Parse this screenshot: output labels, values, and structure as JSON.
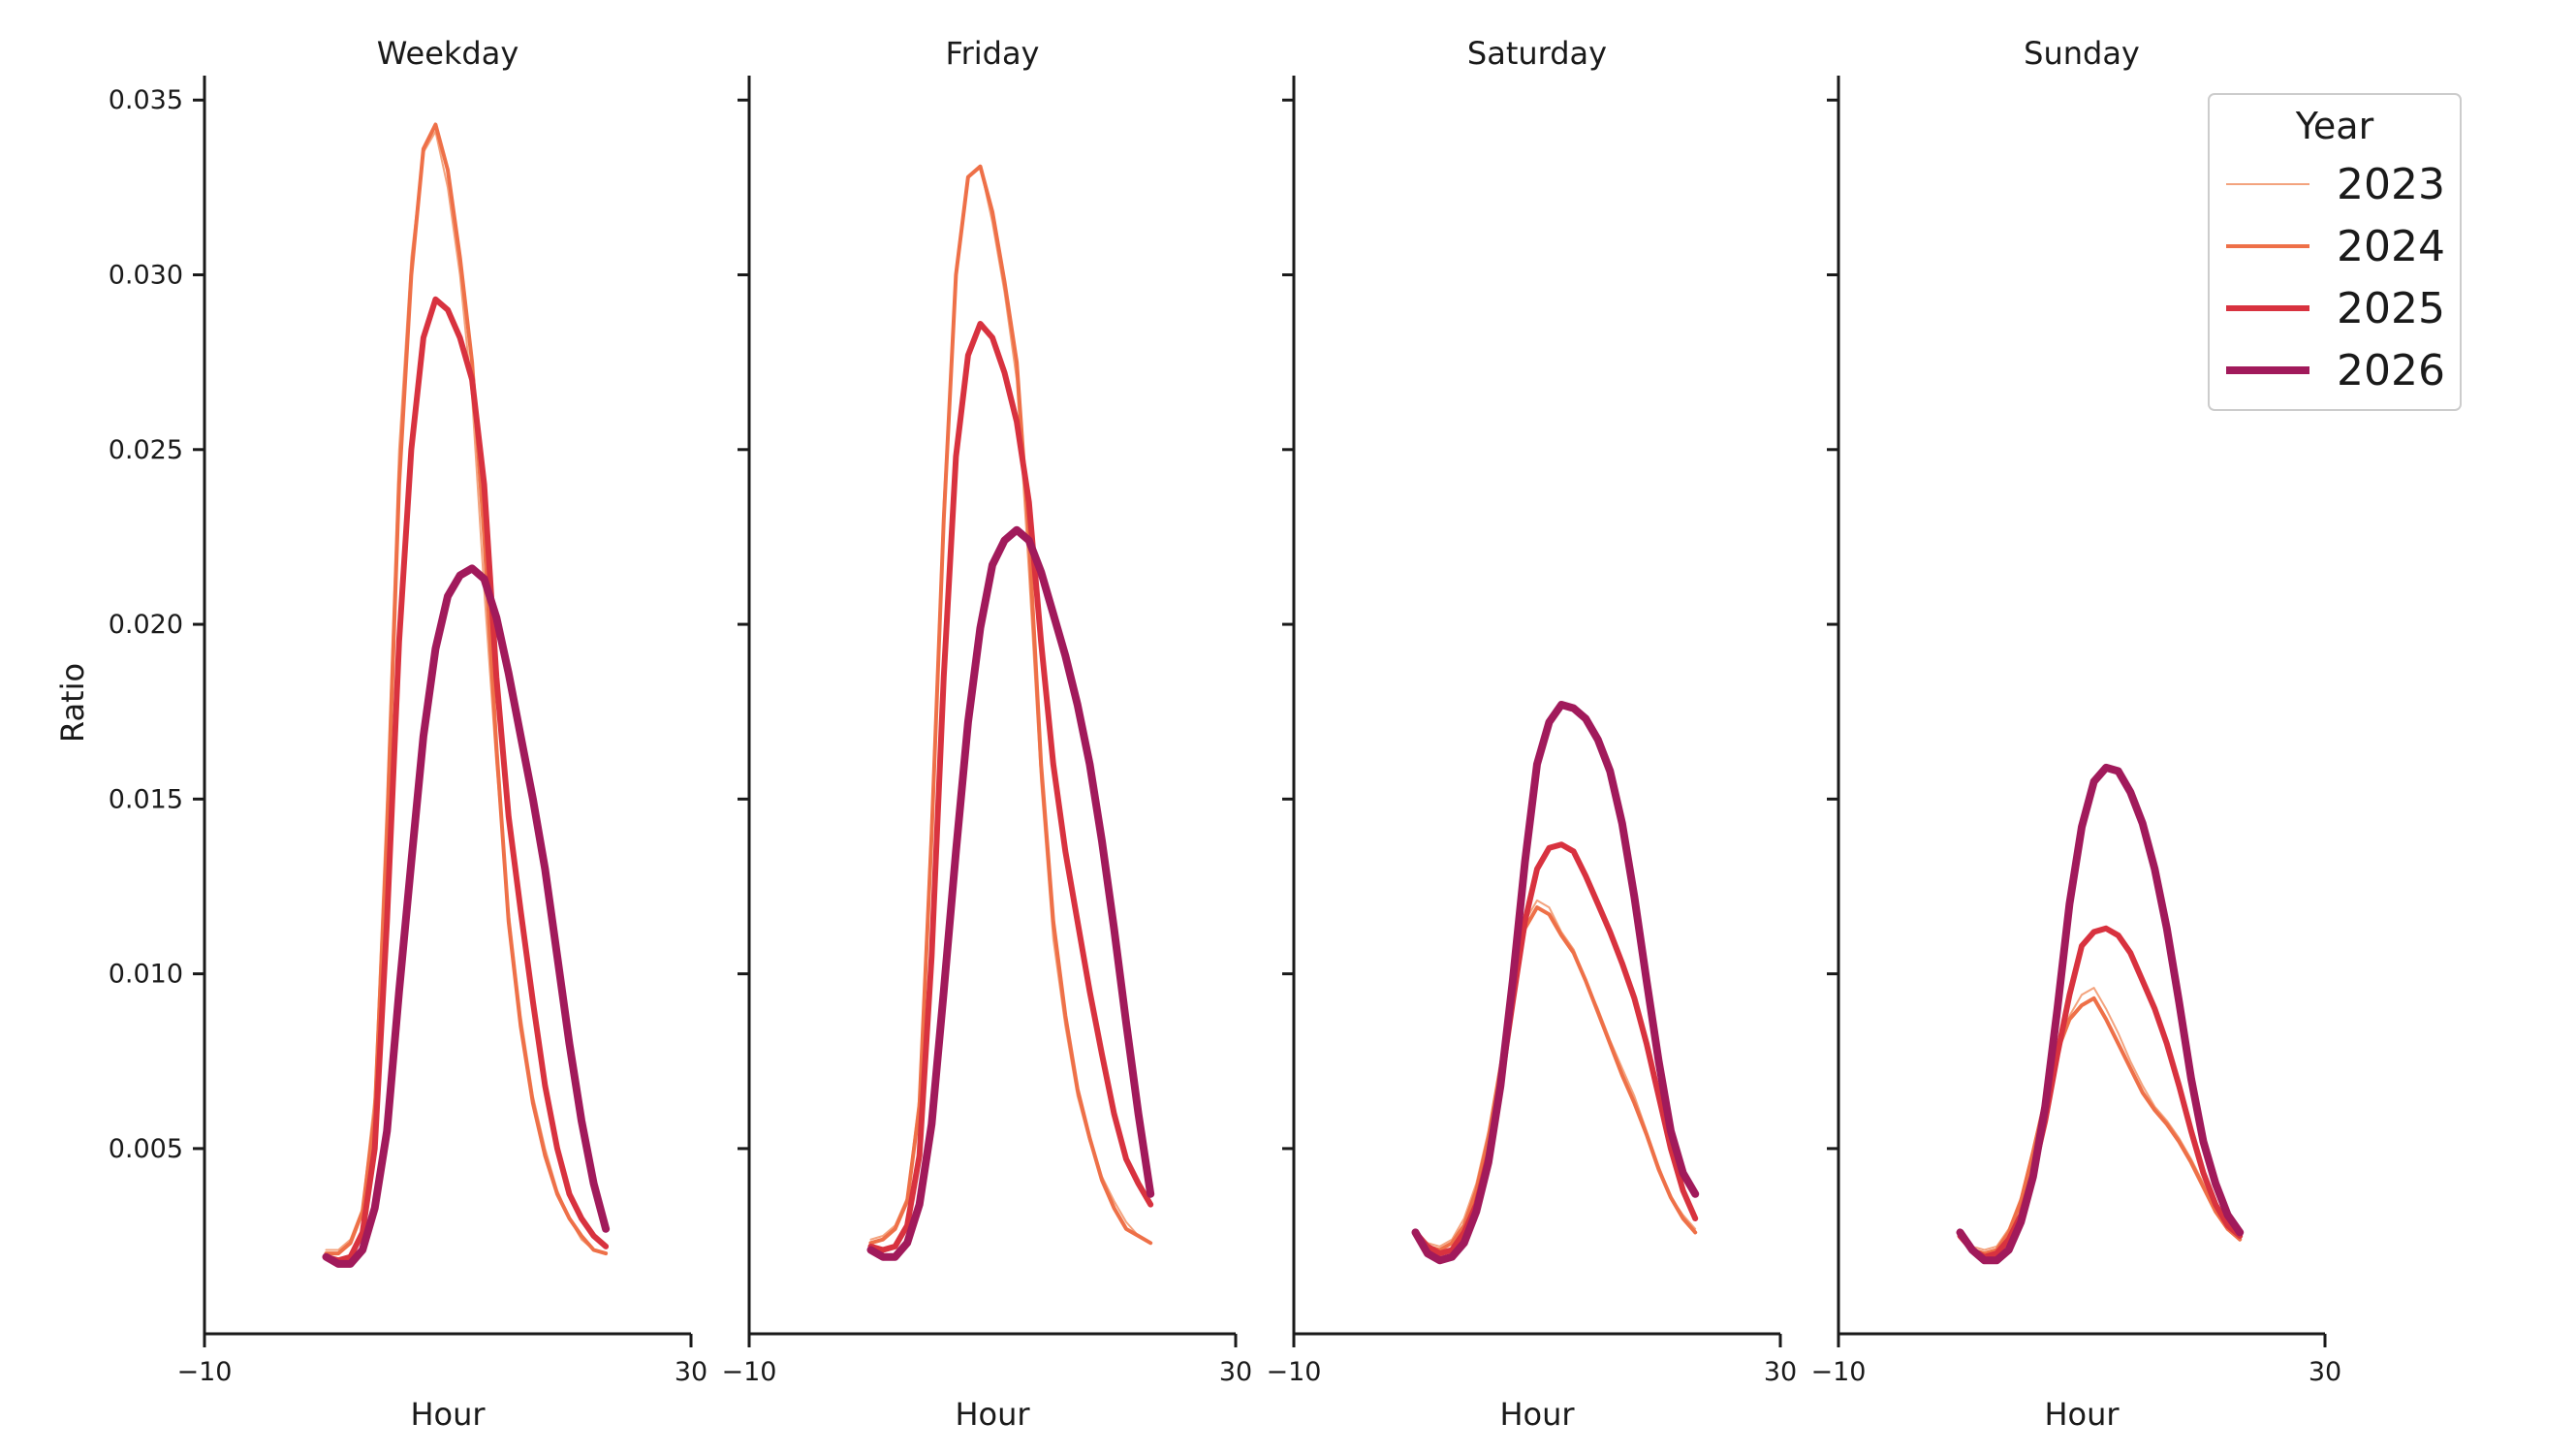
{
  "chart_data": {
    "type": "line",
    "ylabel": "Ratio",
    "xlabel": "Hour",
    "xlim": [
      -10,
      30
    ],
    "xticks": [
      "−10",
      "30"
    ],
    "ylim": [
      -0.0003,
      0.0357
    ],
    "yticks": [
      {
        "value": 0.005,
        "label": "0.005"
      },
      {
        "value": 0.01,
        "label": "0.010"
      },
      {
        "value": 0.015,
        "label": "0.015"
      },
      {
        "value": 0.02,
        "label": "0.020"
      },
      {
        "value": 0.025,
        "label": "0.025"
      },
      {
        "value": 0.03,
        "label": "0.030"
      },
      {
        "value": 0.035,
        "label": "0.035"
      }
    ],
    "hours": [
      0,
      1,
      2,
      3,
      4,
      5,
      6,
      7,
      8,
      9,
      10,
      11,
      12,
      13,
      14,
      15,
      16,
      17,
      18,
      19,
      20,
      21,
      22,
      23
    ],
    "legend": {
      "title": "Year",
      "position": "top-right",
      "entries": [
        {
          "label": "2023",
          "color": "#f3a37e",
          "width": 2
        },
        {
          "label": "2024",
          "color": "#ee7048",
          "width": 4
        },
        {
          "label": "2025",
          "color": "#d8323f",
          "width": 6
        },
        {
          "label": "2026",
          "color": "#a11a5b",
          "width": 8
        }
      ]
    },
    "panels": [
      {
        "title": "Weekday",
        "series": [
          {
            "name": "2023",
            "values": [
              0.0021,
              0.0021,
              0.0024,
              0.0033,
              0.0065,
              0.015,
              0.025,
              0.0305,
              0.0335,
              0.0341,
              0.0325,
              0.03,
              0.0265,
              0.021,
              0.016,
              0.0118,
              0.0088,
              0.0065,
              0.005,
              0.0038,
              0.003,
              0.0024,
              0.0021,
              0.002
            ]
          },
          {
            "name": "2024",
            "values": [
              0.002,
              0.002,
              0.0023,
              0.0032,
              0.006,
              0.014,
              0.024,
              0.03,
              0.0336,
              0.0343,
              0.033,
              0.0305,
              0.0275,
              0.0225,
              0.0165,
              0.0115,
              0.0085,
              0.0063,
              0.0048,
              0.0037,
              0.003,
              0.0025,
              0.0021,
              0.002
            ]
          },
          {
            "name": "2025",
            "values": [
              0.0019,
              0.0018,
              0.0019,
              0.0026,
              0.005,
              0.0115,
              0.0195,
              0.025,
              0.0282,
              0.0293,
              0.029,
              0.0282,
              0.027,
              0.024,
              0.0185,
              0.0145,
              0.0118,
              0.0092,
              0.0068,
              0.005,
              0.0037,
              0.003,
              0.0025,
              0.0022
            ]
          },
          {
            "name": "2026",
            "values": [
              0.0019,
              0.0017,
              0.0017,
              0.0021,
              0.0033,
              0.0055,
              0.0095,
              0.0132,
              0.0168,
              0.0193,
              0.0208,
              0.0214,
              0.0216,
              0.0213,
              0.0202,
              0.0186,
              0.0168,
              0.015,
              0.013,
              0.0105,
              0.008,
              0.0058,
              0.004,
              0.0027
            ]
          }
        ]
      },
      {
        "title": "Friday",
        "series": [
          {
            "name": "2023",
            "values": [
              0.0024,
              0.0025,
              0.0028,
              0.0036,
              0.0065,
              0.0145,
              0.0235,
              0.03,
              0.0328,
              0.0331,
              0.0315,
              0.0295,
              0.027,
              0.0215,
              0.0155,
              0.011,
              0.0085,
              0.0065,
              0.0052,
              0.0042,
              0.0035,
              0.0029,
              0.0025,
              0.0023
            ]
          },
          {
            "name": "2024",
            "values": [
              0.0023,
              0.0024,
              0.0027,
              0.0035,
              0.0062,
              0.014,
              0.023,
              0.03,
              0.0328,
              0.0331,
              0.0318,
              0.0298,
              0.0275,
              0.0225,
              0.016,
              0.0115,
              0.0088,
              0.0067,
              0.0053,
              0.0041,
              0.0033,
              0.0027,
              0.0025,
              0.0023
            ]
          },
          {
            "name": "2025",
            "values": [
              0.0022,
              0.0021,
              0.0022,
              0.0028,
              0.0048,
              0.0105,
              0.0185,
              0.0248,
              0.0277,
              0.0286,
              0.0282,
              0.0272,
              0.0258,
              0.0235,
              0.0195,
              0.016,
              0.0135,
              0.0115,
              0.0095,
              0.0077,
              0.006,
              0.0047,
              0.004,
              0.0034
            ]
          },
          {
            "name": "2026",
            "values": [
              0.0021,
              0.0019,
              0.0019,
              0.0023,
              0.0034,
              0.0057,
              0.0095,
              0.0135,
              0.0172,
              0.0199,
              0.0217,
              0.0224,
              0.0227,
              0.0224,
              0.0215,
              0.0203,
              0.0191,
              0.0177,
              0.016,
              0.0138,
              0.0113,
              0.0086,
              0.006,
              0.0037
            ]
          }
        ]
      },
      {
        "title": "Saturday",
        "series": [
          {
            "name": "2023",
            "values": [
              0.0026,
              0.0023,
              0.0022,
              0.0024,
              0.003,
              0.004,
              0.0055,
              0.0075,
              0.0097,
              0.0115,
              0.0121,
              0.0119,
              0.0112,
              0.0107,
              0.0098,
              0.009,
              0.0081,
              0.0073,
              0.0065,
              0.0055,
              0.0045,
              0.0036,
              0.0031,
              0.0027
            ]
          },
          {
            "name": "2024",
            "values": [
              0.0025,
              0.0022,
              0.0021,
              0.0023,
              0.0028,
              0.0038,
              0.0053,
              0.0073,
              0.0095,
              0.0113,
              0.0119,
              0.0117,
              0.0111,
              0.0106,
              0.0098,
              0.0089,
              0.008,
              0.0071,
              0.0063,
              0.0054,
              0.0044,
              0.0036,
              0.003,
              0.0026
            ]
          },
          {
            "name": "2025",
            "values": [
              0.0026,
              0.0022,
              0.002,
              0.0021,
              0.0026,
              0.0034,
              0.0048,
              0.0068,
              0.0092,
              0.0115,
              0.013,
              0.0136,
              0.0137,
              0.0135,
              0.0128,
              0.012,
              0.0112,
              0.0103,
              0.0093,
              0.008,
              0.0065,
              0.005,
              0.0038,
              0.003
            ]
          },
          {
            "name": "2026",
            "values": [
              0.0026,
              0.002,
              0.0018,
              0.0019,
              0.0023,
              0.0032,
              0.0046,
              0.0068,
              0.0098,
              0.0132,
              0.016,
              0.0172,
              0.0177,
              0.0176,
              0.0173,
              0.0167,
              0.0158,
              0.0143,
              0.0122,
              0.0098,
              0.0075,
              0.0055,
              0.0043,
              0.0037
            ]
          }
        ]
      },
      {
        "title": "Sunday",
        "series": [
          {
            "name": "2023",
            "values": [
              0.0025,
              0.0022,
              0.0021,
              0.0022,
              0.0027,
              0.0036,
              0.005,
              0.0065,
              0.0079,
              0.0088,
              0.0094,
              0.0096,
              0.009,
              0.0083,
              0.0075,
              0.0068,
              0.0062,
              0.0058,
              0.0053,
              0.0047,
              0.004,
              0.0033,
              0.0028,
              0.0025
            ]
          },
          {
            "name": "2024",
            "values": [
              0.0025,
              0.0021,
              0.002,
              0.0021,
              0.0026,
              0.0035,
              0.0049,
              0.0064,
              0.0078,
              0.0087,
              0.0091,
              0.0093,
              0.0087,
              0.008,
              0.0073,
              0.0066,
              0.0061,
              0.0057,
              0.0052,
              0.0046,
              0.0039,
              0.0032,
              0.0027,
              0.0024
            ]
          },
          {
            "name": "2025",
            "values": [
              0.0025,
              0.0021,
              0.0019,
              0.002,
              0.0024,
              0.0031,
              0.0043,
              0.0058,
              0.0077,
              0.0094,
              0.0108,
              0.0112,
              0.0113,
              0.0111,
              0.0106,
              0.0098,
              0.009,
              0.008,
              0.0068,
              0.0055,
              0.0043,
              0.0034,
              0.0028,
              0.0025
            ]
          },
          {
            "name": "2026",
            "values": [
              0.0026,
              0.0021,
              0.0018,
              0.0018,
              0.0021,
              0.0029,
              0.0042,
              0.0062,
              0.009,
              0.012,
              0.0142,
              0.0155,
              0.0159,
              0.0158,
              0.0152,
              0.0143,
              0.013,
              0.0113,
              0.0092,
              0.007,
              0.0052,
              0.004,
              0.0031,
              0.0026
            ]
          }
        ]
      }
    ]
  }
}
